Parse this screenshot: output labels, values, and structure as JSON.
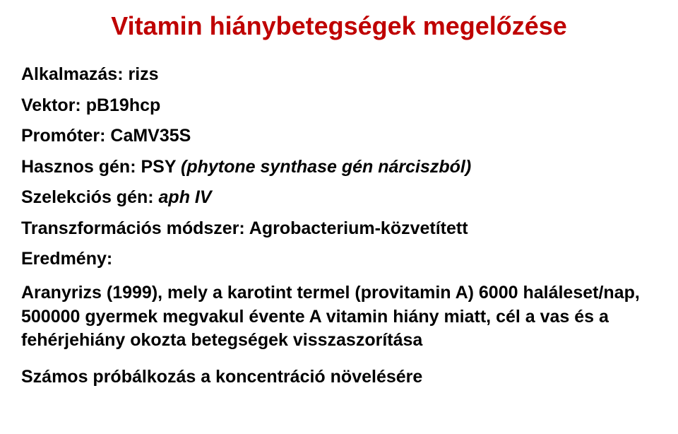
{
  "title_color": "#bf0000",
  "body_color": "#000000",
  "background_color": "#ffffff",
  "title_fontsize": 36,
  "body_fontsize": 25,
  "title": "Vitamin hiánybetegségek megelőzése",
  "lines": {
    "l1": "Alkalmazás: rizs",
    "l2": "Vektor: pB19hcp",
    "l3": "Promóter: CaMV35S",
    "l4_pre": "Hasznos gén:  PSY ",
    "l4_it": "(phytone synthase gén nárciszból)",
    "l5_pre": "Szelekciós gén: ",
    "l5_it": "aph IV",
    "l6": "Transzformációs módszer: Agrobacterium-közvetített",
    "l7": "Eredmény:"
  },
  "result": {
    "r1": "Aranyrizs (1999), mely a karotint termel (provitamin A) 6000 haláleset/nap, 500000 gyermek megvakul évente A vitamin hiány miatt, cél  a vas és a fehérjehiány okozta betegségek visszaszorítása",
    "r2": "Számos próbálkozás a koncentráció növelésére"
  }
}
